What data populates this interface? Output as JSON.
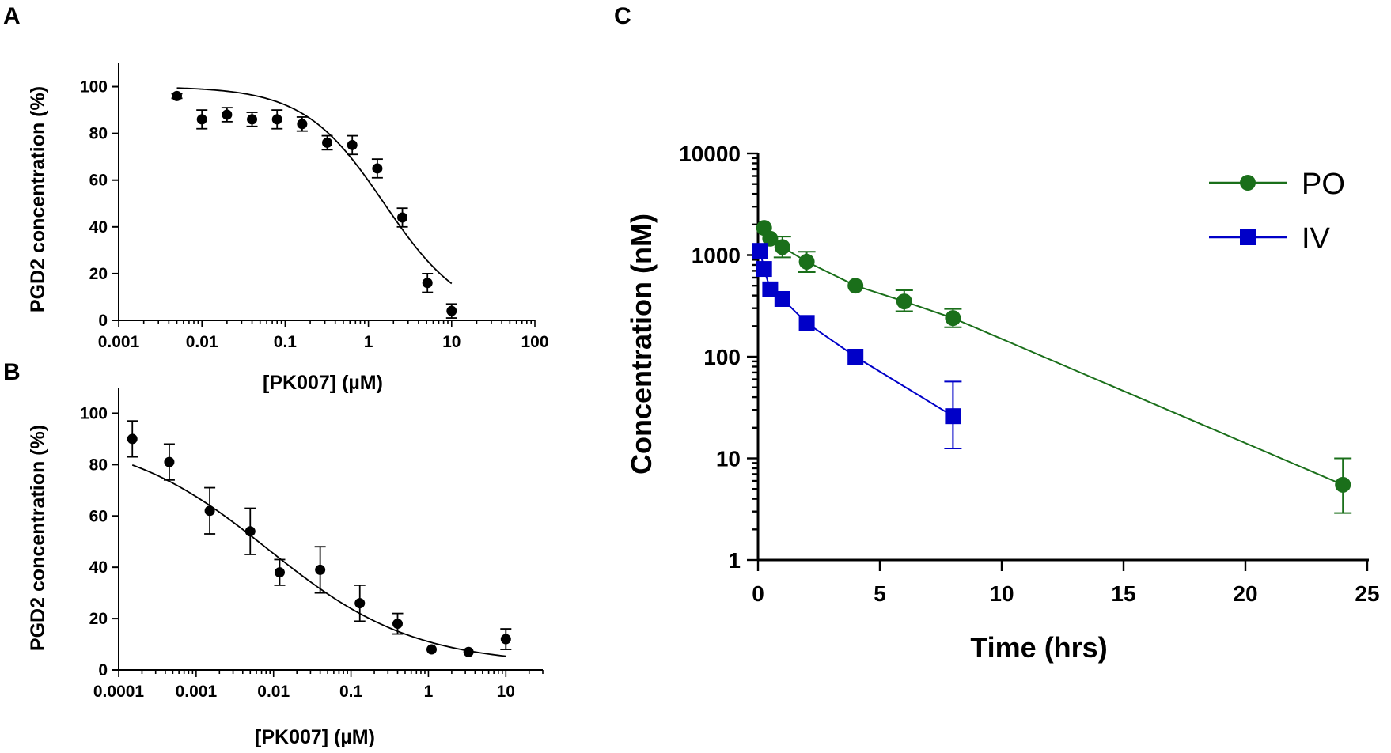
{
  "panels": [
    {
      "label": "A"
    },
    {
      "label": "B"
    },
    {
      "label": "C"
    }
  ],
  "chart_data": [
    {
      "type": "scatter",
      "panel": "A",
      "xlabel": "[PK007] (µM)",
      "ylabel": "PGD2 concentration (%)",
      "xscale": "log",
      "xlim": [
        0.001,
        100
      ],
      "ylim": [
        0,
        110
      ],
      "xticks": [
        "0.001",
        "0.01",
        "0.1",
        "1",
        "10",
        "100"
      ],
      "yticks": [
        "0",
        "20",
        "40",
        "60",
        "80",
        "100"
      ],
      "x": [
        0.005,
        0.01,
        0.02,
        0.04,
        0.08,
        0.16,
        0.32,
        0.64,
        1.28,
        2.56,
        5.12,
        10
      ],
      "y": [
        96,
        86,
        88,
        86,
        86,
        84,
        76,
        75,
        65,
        44,
        16,
        4
      ],
      "err": [
        1,
        4,
        3,
        3,
        4,
        3,
        3,
        4,
        4,
        4,
        4,
        3
      ],
      "fit": {
        "top": 100,
        "bottom": 0,
        "ic50": 1.55,
        "hill": 0.9,
        "x_range": [
          0.005,
          10
        ]
      }
    },
    {
      "type": "scatter",
      "panel": "B",
      "xlabel": "[PK007] (µM)",
      "ylabel": "PGD2 concentration (%)",
      "xscale": "log",
      "xlim": [
        0.0001,
        30
      ],
      "ylim": [
        0,
        110
      ],
      "xticks": [
        "0.0001",
        "0.001",
        "0.01",
        "0.1",
        "1",
        "10"
      ],
      "yticks": [
        "0",
        "20",
        "40",
        "60",
        "80",
        "100"
      ],
      "x": [
        0.00015,
        0.00045,
        0.0015,
        0.005,
        0.012,
        0.04,
        0.13,
        0.4,
        1.1,
        3.3,
        10
      ],
      "y": [
        90,
        81,
        62,
        54,
        38,
        39,
        26,
        18,
        8,
        7,
        12
      ],
      "err": [
        7,
        7,
        9,
        9,
        5,
        9,
        7,
        4,
        0,
        0,
        4
      ],
      "fit": {
        "top": 92,
        "bottom": 2,
        "ic50": 0.0085,
        "hill": 0.46,
        "x_range": [
          0.00015,
          10
        ]
      }
    },
    {
      "type": "line",
      "panel": "C",
      "xlabel": "Time (hrs)",
      "ylabel": "Concentration (nM)",
      "yscale": "log",
      "xlim": [
        0,
        25
      ],
      "ylim": [
        1,
        10000
      ],
      "xticks": [
        "0",
        "5",
        "10",
        "15",
        "20",
        "25"
      ],
      "yticks": [
        "1",
        "10",
        "100",
        "1000",
        "10000"
      ],
      "legend_position": "top-right",
      "series": [
        {
          "name": "PO",
          "color": "#1a6f1a",
          "marker": "circle",
          "x": [
            0.25,
            0.5,
            1,
            2,
            4,
            6,
            8,
            24
          ],
          "y": [
            1850,
            1450,
            1200,
            860,
            500,
            350,
            240,
            5.5
          ],
          "err_low": [
            1850,
            1450,
            950,
            680,
            500,
            280,
            195,
            2.9
          ],
          "err_high": [
            1850,
            1450,
            1520,
            1080,
            500,
            450,
            295,
            10
          ]
        },
        {
          "name": "IV",
          "color": "#0000c8",
          "marker": "square",
          "x": [
            0.083,
            0.25,
            0.5,
            1,
            2,
            4,
            8
          ],
          "y": [
            1100,
            730,
            460,
            370,
            215,
            100,
            26
          ],
          "err_low": [
            1100,
            730,
            460,
            370,
            215,
            100,
            12.5
          ],
          "err_high": [
            1100,
            730,
            460,
            370,
            215,
            100,
            57
          ]
        }
      ]
    }
  ]
}
